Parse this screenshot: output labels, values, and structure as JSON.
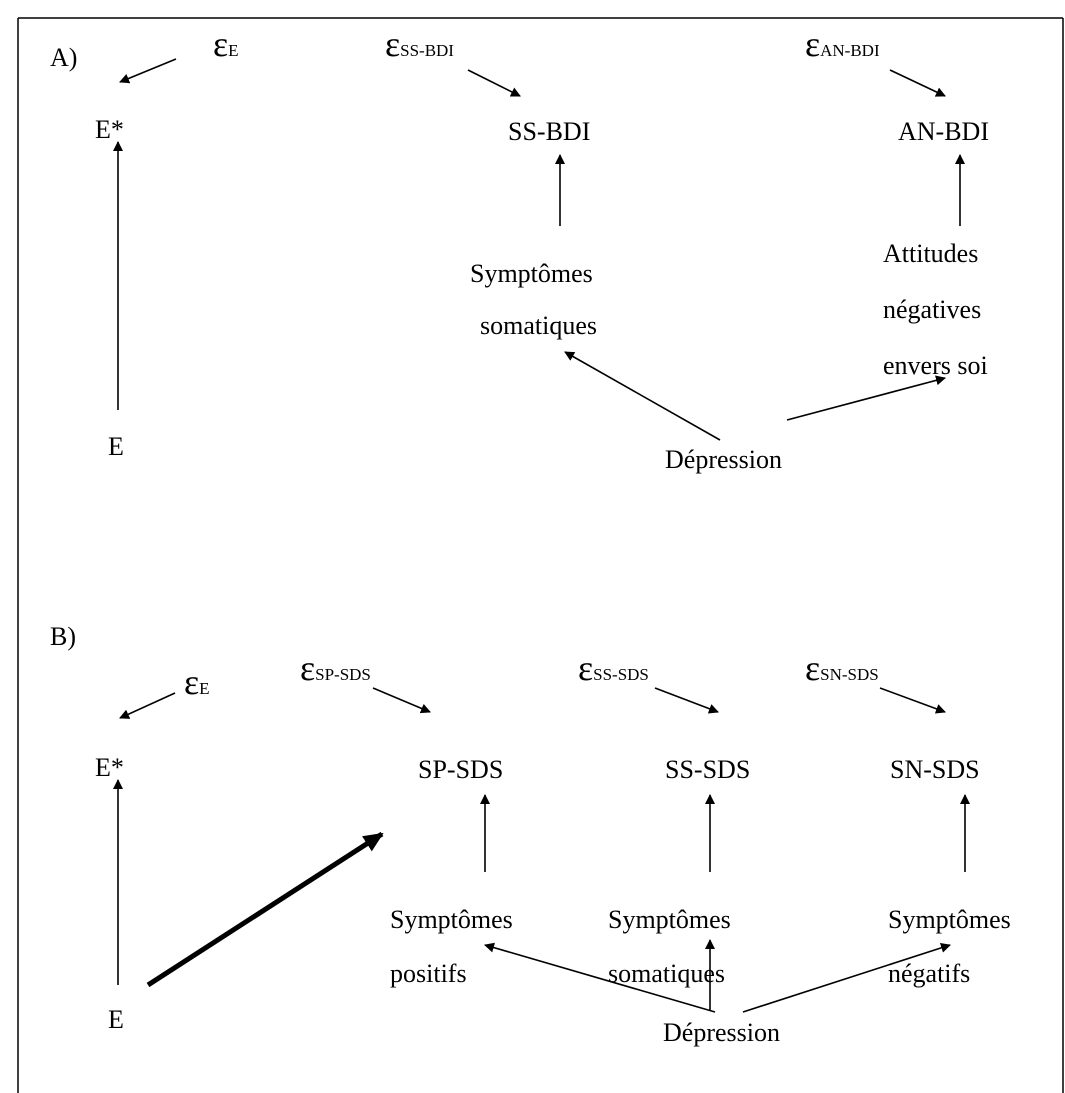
{
  "panel_a": {
    "label": "A)",
    "error_e": {
      "symbol": "ε",
      "sub": "E"
    },
    "error_ss": {
      "symbol": "ε",
      "sub": "SS-BDI"
    },
    "error_an": {
      "symbol": "ε",
      "sub": "AN-BDI"
    },
    "e_star": "E*",
    "ss_bdi": "SS-BDI",
    "an_bdi": "AN-BDI",
    "e": "E",
    "somatic": [
      "Symptômes",
      "somatiques"
    ],
    "attitudes": [
      "Attitudes",
      "négatives",
      "envers soi"
    ],
    "depression": "Dépression"
  },
  "panel_b": {
    "label": "B)",
    "error_e": {
      "symbol": "ε",
      "sub": "E"
    },
    "error_sp": {
      "symbol": "ε",
      "sub": "SP-SDS"
    },
    "error_ss": {
      "symbol": "ε",
      "sub": "SS-SDS"
    },
    "error_sn": {
      "symbol": "ε",
      "sub": "SN-SDS"
    },
    "e_star": "E*",
    "sp_sds": "SP-SDS",
    "ss_sds": "SS-SDS",
    "sn_sds": "SN-SDS",
    "e": "E",
    "positive": [
      "Symptômes",
      "positifs"
    ],
    "somatic": [
      "Symptômes",
      "somatiques"
    ],
    "negative": [
      "Symptômes",
      "négatifs"
    ],
    "depression": "Dépression"
  }
}
